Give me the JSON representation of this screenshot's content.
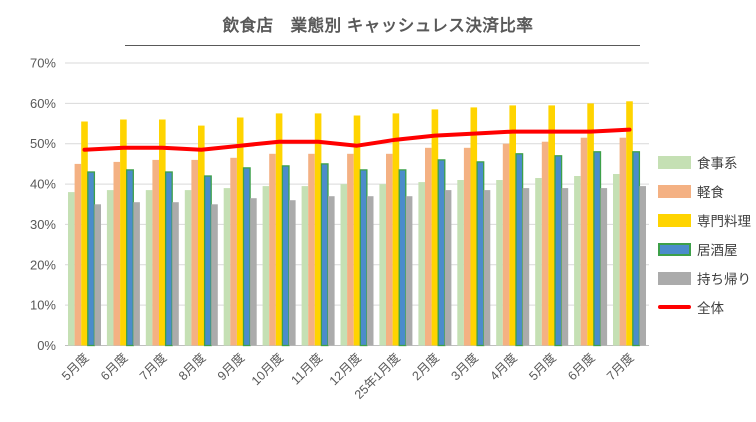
{
  "chart": {
    "title": "飲食店　業態別 キャッシュレス決済比率"
  },
  "chart_data": {
    "type": "bar",
    "subtype": "grouped bars with overlay line",
    "title": "飲食店　業態別 キャッシュレス決済比率",
    "categories": [
      "5月度",
      "6月度",
      "7月度",
      "8月度",
      "9月度",
      "10月度",
      "11月度",
      "12月度",
      "25年1月度",
      "2月度",
      "3月度",
      "4月度",
      "5月度",
      "6月度",
      "7月度"
    ],
    "series": [
      {
        "name": "食事系",
        "type": "bar",
        "color": "#C5E0B4",
        "values": [
          38,
          38.5,
          38.5,
          38.5,
          39,
          39.5,
          39.5,
          40,
          40,
          40.5,
          41,
          41,
          41.5,
          42,
          42.5
        ]
      },
      {
        "name": "軽食",
        "type": "bar",
        "color": "#F4B183",
        "values": [
          45,
          45.5,
          46,
          46,
          46.5,
          47.5,
          47.5,
          47.5,
          47.5,
          49,
          49,
          50,
          50.5,
          51.5,
          51.5
        ]
      },
      {
        "name": "専門料理",
        "type": "bar",
        "color": "#FFD400",
        "values": [
          55.5,
          56,
          56,
          54.5,
          56.5,
          57.5,
          57.5,
          57,
          57.5,
          58.5,
          59,
          59.5,
          59.5,
          60,
          60.5
        ]
      },
      {
        "name": "居酒屋",
        "type": "bar",
        "color": "#4B8CCB",
        "border_color": "#3DA049",
        "values": [
          43,
          43.5,
          43,
          42,
          44,
          44.5,
          45,
          43.5,
          43.5,
          46,
          45.5,
          47.5,
          47,
          48,
          48
        ]
      },
      {
        "name": "持ち帰り",
        "type": "bar",
        "color": "#ABABAB",
        "values": [
          35,
          35.5,
          35.5,
          35,
          36.5,
          36,
          37,
          37,
          37,
          38.5,
          38.5,
          39,
          39,
          39,
          39.5
        ]
      },
      {
        "name": "全体",
        "type": "line",
        "color": "#FF0000",
        "values": [
          48.5,
          49,
          49,
          48.5,
          49.5,
          50.5,
          50.5,
          49.5,
          51,
          52,
          52.5,
          53,
          53,
          53,
          53.5
        ]
      }
    ],
    "ylim": [
      0,
      70
    ],
    "ytick_values": [
      70,
      60,
      50,
      40,
      30,
      20,
      10,
      0
    ],
    "yticks": [
      "70%",
      "60%",
      "50%",
      "40%",
      "30%",
      "20%",
      "10%",
      "0%"
    ],
    "xlabel": "",
    "ylabel": "",
    "grid": true,
    "gridline_color": "#D9D9D9",
    "axis_line_color": "#BFBFBF",
    "legend_position": "right"
  }
}
